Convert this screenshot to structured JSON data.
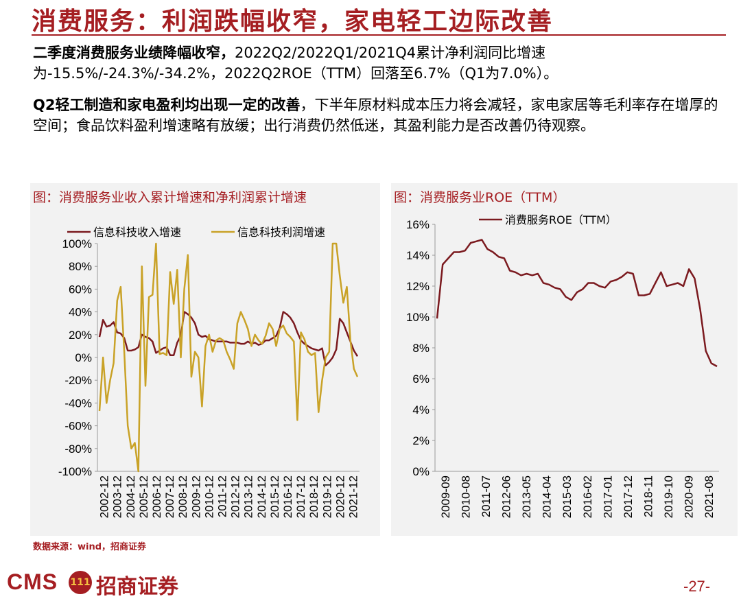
{
  "header": {
    "title": "消费服务：利润跌幅收窄，家电轻工边际改善"
  },
  "body": {
    "p1_bold": "二季度消费服务业绩降幅收窄，",
    "p1_rest": "2022Q2/2022Q1/2021Q4累计净利润同比增速为-15.5%/-24.3%/-34.2%，2022Q2ROE（TTM）回落至6.7%（Q1为7.0%）。",
    "p2_bold": "Q2轻工制造和家电盈利均出现一定的改善",
    "p2_rest": "，下半年原材料成本压力将会减轻，家电家居等毛利率存在增厚的空间；食品饮料盈利增速略有放缓；出行消费仍然低迷，其盈利能力是否改善仍待观察。"
  },
  "colors": {
    "brand": "#a51e22",
    "series_revenue": "#7b1a1f",
    "series_profit": "#c9a227",
    "panel_bg": "#f2f2f2"
  },
  "chart_data": [
    {
      "type": "line",
      "title": "图：消费服务业收入累计增速和净利润累计增速",
      "xlabel": "",
      "ylabel": "",
      "ylim": [
        -100,
        100
      ],
      "yticks": [
        "-100%",
        "-80%",
        "-60%",
        "-40%",
        "-20%",
        "0%",
        "20%",
        "40%",
        "60%",
        "80%",
        "100%"
      ],
      "xticks": [
        "2002-12",
        "2003-12",
        "2004-12",
        "2005-12",
        "2006-12",
        "2007-12",
        "2008-12",
        "2009-12",
        "2010-12",
        "2011-12",
        "2012-12",
        "2013-12",
        "2014-12",
        "2015-12",
        "2016-12",
        "2017-12",
        "2018-12",
        "2019-12",
        "2020-12",
        "2021-12"
      ],
      "legend_position": "top",
      "grid": false,
      "x_start": "2002-12",
      "x_frequency": "quarterly",
      "series": [
        {
          "name": "信息科技收入增速",
          "values": [
            18,
            33,
            27,
            28,
            31,
            22,
            21,
            17,
            6,
            6,
            7,
            9,
            20,
            18,
            17,
            14,
            4,
            6,
            8,
            9,
            2,
            2,
            13,
            19,
            40,
            38,
            35,
            30,
            20,
            18,
            19,
            16,
            15,
            14,
            14,
            14,
            14,
            13,
            13,
            13,
            12,
            12,
            14,
            12,
            13,
            11,
            12,
            15,
            15,
            17,
            19,
            26,
            40,
            38,
            35,
            30,
            22,
            15,
            12,
            10,
            8,
            7,
            6,
            8,
            -7,
            -4,
            0,
            7,
            34,
            30,
            22,
            14,
            6,
            1
          ]
        },
        {
          "name": "信息科技利润增速",
          "values": [
            -47,
            0,
            -40,
            -20,
            -5,
            50,
            62,
            5,
            -60,
            -80,
            -75,
            -100,
            80,
            -25,
            53,
            55,
            140,
            3,
            4,
            2,
            75,
            47,
            77,
            0,
            60,
            90,
            -17,
            5,
            0,
            -43,
            10,
            20,
            5,
            15,
            17,
            15,
            5,
            -2,
            -10,
            30,
            40,
            33,
            25,
            10,
            20,
            15,
            12,
            19,
            30,
            25,
            10,
            25,
            28,
            21,
            18,
            14,
            -55,
            22,
            16,
            5,
            2,
            4,
            -48,
            -20,
            0,
            5,
            100,
            100,
            72,
            48,
            62,
            15,
            -10,
            -17
          ]
        }
      ]
    },
    {
      "type": "line",
      "title": "图：消费服务业ROE（TTM）",
      "xlabel": "",
      "ylabel": "",
      "ylim": [
        0,
        16
      ],
      "yticks": [
        "0%",
        "2%",
        "4%",
        "6%",
        "8%",
        "10%",
        "12%",
        "14%",
        "16%"
      ],
      "xticks": [
        "2009-09",
        "2010-08",
        "2011-07",
        "2012-06",
        "2013-05",
        "2014-04",
        "2015-03",
        "2016-02",
        "2017-01",
        "2017-12",
        "2018-11",
        "2019-10",
        "2020-09",
        "2021-08"
      ],
      "legend_position": "top",
      "grid": false,
      "x_start": "2009-09",
      "x_frequency": "quarterly",
      "series": [
        {
          "name": "消费服务ROE（TTM）",
          "values": [
            9.9,
            13.4,
            13.8,
            14.2,
            14.2,
            14.3,
            14.8,
            14.9,
            15.0,
            14.4,
            14.2,
            13.9,
            13.8,
            13.0,
            12.9,
            12.7,
            12.8,
            12.7,
            12.8,
            12.2,
            12.1,
            11.9,
            11.8,
            11.3,
            11.1,
            11.6,
            11.8,
            12.2,
            12.2,
            12.0,
            11.9,
            12.3,
            12.4,
            12.6,
            12.9,
            12.8,
            11.4,
            11.4,
            11.5,
            12.2,
            12.9,
            12.0,
            12.1,
            12.2,
            12.0,
            13.1,
            12.5,
            10.5,
            7.8,
            7.0,
            6.8
          ]
        }
      ]
    }
  ],
  "footer": {
    "source": "数据来源：wind，招商证券",
    "logo_cms": "CMS",
    "logo_badge": "111",
    "logo_cn": "招商证券",
    "page": "-27-"
  }
}
